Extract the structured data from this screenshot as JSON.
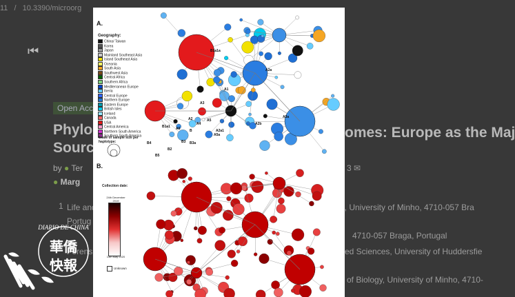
{
  "breadcrumb": {
    "part1": "11",
    "sep": "/",
    "part2": "10.3390/microorg"
  },
  "nav": {
    "first_icon": "first-page-icon"
  },
  "article": {
    "badge": "Open Acc",
    "title_line1_left": "Phyloge",
    "title_line1_right": "omes: Europe as the Maj",
    "title_line2_left": "Source",
    "byline_prefix": "by",
    "author_frag1": "Ter",
    "author_frag2": "Marg",
    "count_frag": "3",
    "aff1_num": "1",
    "aff1_a": "Life and",
    "aff1_b": "Portug",
    "aff1_right": "me, University of Minho, 4710-057 Bra",
    "aff2_right": "4710-057 Braga, Portugal",
    "aff3_a": "Forens",
    "aff3_right": "ed Sciences, University of Huddersfie",
    "aff4_right": "of Biology, University of Minho, 4710-"
  },
  "figure": {
    "panel_a": "A.",
    "panel_b": "B.",
    "geography_title": "Geography:",
    "geography": [
      {
        "label": "China/ Taiwan",
        "color": "#111111"
      },
      {
        "label": "Korea",
        "color": "#555555"
      },
      {
        "label": "Japan",
        "color": "#999999"
      },
      {
        "label": "Mainland Southeast Asia",
        "color": "#cccccc"
      },
      {
        "label": "Island Southeast Asia",
        "color": "#f2e100"
      },
      {
        "label": "Oceania",
        "color": "#ffff66"
      },
      {
        "label": "South Asia",
        "color": "#f5a623"
      },
      {
        "label": "Southwest Asia",
        "color": "#7a4a1a"
      },
      {
        "label": "Central Africa",
        "color": "#006400"
      },
      {
        "label": "Southern Africa",
        "color": "#7fd17f"
      },
      {
        "label": "Mediterranean Europe",
        "color": "#0044cc"
      },
      {
        "label": "Iberia",
        "color": "#66ccff"
      },
      {
        "label": "Central Europe",
        "color": "#3366ff"
      },
      {
        "label": "Northern Europe",
        "color": "#1f77d4"
      },
      {
        "label": "Eastern Europe",
        "color": "#0099aa"
      },
      {
        "label": "British Isles",
        "color": "#00ccee"
      },
      {
        "label": "Iceland",
        "color": "#99e6ff"
      },
      {
        "label": "Canada",
        "color": "#ff6666"
      },
      {
        "label": "USA",
        "color": "#e31a1c"
      },
      {
        "label": "Central America",
        "color": "#ff99cc"
      },
      {
        "label": "Northern South America",
        "color": "#cc33cc"
      },
      {
        "label": "Southern South America",
        "color": "#993399"
      }
    ],
    "scale_label": "Scale of sample size per haplotype:",
    "collection_label": "Collection date:",
    "cb_top": "24th December 2019",
    "cb_bottom": "13th May 2020",
    "unknown": "Unknown",
    "node_labels": [
      "B1a1a",
      "A2a",
      "A1",
      "A3",
      "A3a",
      "A2",
      "B1a1",
      "B",
      "A5",
      "A4",
      "A6",
      "A2a1",
      "A2b",
      "B3",
      "B4",
      "B2",
      "B3a",
      "B5",
      "A5a"
    ]
  },
  "watermark": {
    "arc_text": "DIARIO DE CHINA",
    "chars_top": "華僑",
    "chars_bottom": "快報"
  }
}
